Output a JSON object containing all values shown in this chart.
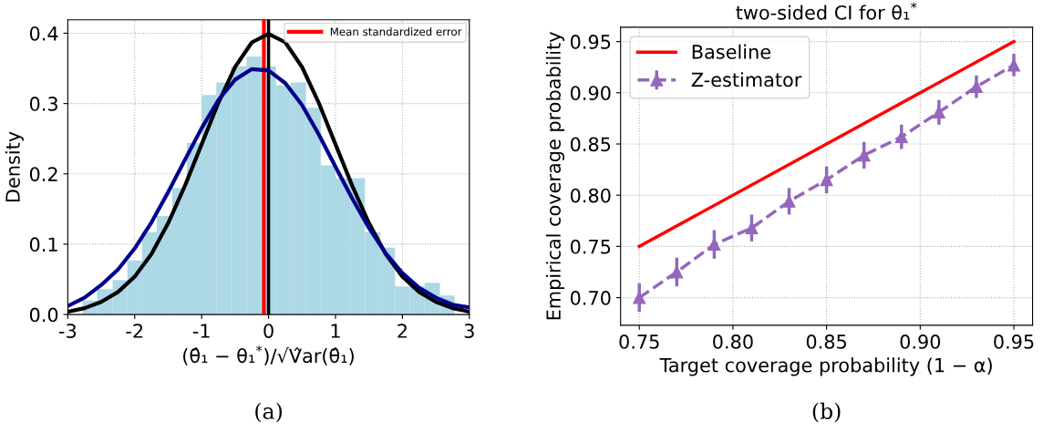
{
  "chart_data": [
    {
      "type": "histogram",
      "ylabel": "Density",
      "xlabel": "(θ̂₁ − θ₁$^{*}$)/√V̂ar(θ̂₁)",
      "bins": [
        -2.78,
        -2.56,
        -2.33,
        -2.11,
        -1.89,
        -1.67,
        -1.44,
        -1.22,
        -1.0,
        -0.78,
        -0.56,
        -0.33,
        -0.11,
        0.11,
        0.33,
        0.56,
        0.78,
        1.0,
        1.22,
        1.44,
        1.67,
        1.89,
        2.11,
        2.33,
        2.56,
        2.78
      ],
      "values": [
        0.02,
        0.036,
        0.049,
        0.077,
        0.117,
        0.14,
        0.18,
        0.244,
        0.312,
        0.33,
        0.353,
        0.367,
        0.353,
        0.326,
        0.33,
        0.294,
        0.212,
        0.194,
        0.194,
        0.117,
        0.095,
        0.04,
        0.04,
        0.045,
        0.027
      ],
      "color": "#add8e6",
      "series": [
        {
          "type": "line",
          "name": "Mean standardized error",
          "color": "#ff0000",
          "x": [
            -0.07,
            -0.07
          ],
          "values": [
            0,
            0.419
          ]
        },
        {
          "type": "line",
          "color": "#000000",
          "x": [
            -3,
            -2.75,
            -2.5,
            -2.25,
            -2,
            -1.75,
            -1.5,
            -1.25,
            -1,
            -0.75,
            -0.5,
            -0.25,
            0,
            0.25,
            0.5,
            0.75,
            1,
            1.25,
            1.5,
            1.75,
            2,
            2.25,
            2.5,
            2.75,
            3
          ],
          "values": [
            0.004,
            0.009,
            0.018,
            0.032,
            0.054,
            0.086,
            0.13,
            0.183,
            0.242,
            0.301,
            0.352,
            0.387,
            0.399,
            0.387,
            0.352,
            0.301,
            0.242,
            0.183,
            0.13,
            0.086,
            0.054,
            0.032,
            0.018,
            0.009,
            0.004
          ]
        },
        {
          "type": "line",
          "color": "#00008b",
          "x": [
            -3,
            -2.75,
            -2.5,
            -2.25,
            -2,
            -1.75,
            -1.5,
            -1.25,
            -1,
            -0.75,
            -0.5,
            -0.25,
            0,
            0.25,
            0.5,
            0.75,
            1,
            1.25,
            1.5,
            1.75,
            2,
            2.25,
            2.5,
            2.75,
            3
          ],
          "values": [
            0.012,
            0.024,
            0.042,
            0.064,
            0.094,
            0.131,
            0.174,
            0.22,
            0.265,
            0.305,
            0.334,
            0.349,
            0.347,
            0.329,
            0.298,
            0.256,
            0.21,
            0.165,
            0.123,
            0.087,
            0.059,
            0.038,
            0.024,
            0.014,
            0.01
          ]
        }
      ],
      "ref_lines": [
        {
          "axis": "x",
          "value": 0,
          "color": "#000000"
        }
      ],
      "xlim": [
        -3,
        3
      ],
      "xticks": [
        -3,
        -2,
        -1,
        0,
        1,
        2,
        3
      ],
      "ylim": [
        0,
        0.419
      ],
      "yticks": [
        {
          "value": 0,
          "label": "0.0"
        },
        0.1,
        0.2,
        0.3,
        0.4
      ],
      "grid": true,
      "legend": "top right",
      "annotations": [
        "(a)"
      ]
    },
    {
      "type": "line",
      "title": "two-sided CI for θ₁$^{*}$",
      "xlabel": "Target coverage probability (1 − α)",
      "ylabel": "Empirical coverage probability",
      "x": [
        0.75,
        0.77,
        0.79,
        0.81,
        0.83,
        0.85,
        0.87,
        0.89,
        0.91,
        0.93,
        0.95
      ],
      "series": [
        {
          "name": "Baseline",
          "color": "#ff0000",
          "x": [
            0.75,
            0.95
          ],
          "values": [
            0.75,
            0.95
          ],
          "marker": "none",
          "line_style": "solid"
        },
        {
          "name": "Z-estimator",
          "color": "#9467bd",
          "values": [
            0.7,
            0.725,
            0.752,
            0.768,
            0.794,
            0.815,
            0.839,
            0.857,
            0.881,
            0.906,
            0.927
          ],
          "errors": [
            0.014,
            0.014,
            0.014,
            0.013,
            0.013,
            0.013,
            0.013,
            0.012,
            0.012,
            0.011,
            0.011
          ],
          "marker": "triangle",
          "line_style": "dashed"
        }
      ],
      "xlim": [
        0.74,
        0.96
      ],
      "xticks": [
        0.75,
        {
          "value": 0.8,
          "label": "0.80"
        },
        0.85,
        {
          "value": 0.9,
          "label": "0.90"
        },
        0.95
      ],
      "ylim": [
        0.673,
        0.964
      ],
      "yticks": [
        {
          "value": 0.7,
          "label": "0.70"
        },
        0.75,
        {
          "value": 0.8,
          "label": "0.80"
        },
        0.85,
        {
          "value": 0.9,
          "label": "0.90"
        },
        0.95
      ],
      "grid": true,
      "legend": "top left",
      "annotations": [
        "(b)"
      ]
    }
  ]
}
